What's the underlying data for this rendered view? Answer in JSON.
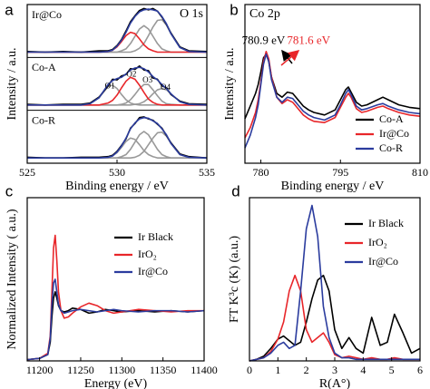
{
  "chart_data": [
    {
      "type": "line",
      "panel_label": "a",
      "title": "O 1s",
      "xlabel": "Binding energy / eV",
      "ylabel": "Intensity / a.u.",
      "xlim": [
        525,
        535
      ],
      "xticks": [
        525,
        530,
        535
      ],
      "x": [
        525,
        526,
        527,
        528,
        528.5,
        529,
        529.5,
        529.75,
        530,
        530.25,
        530.5,
        530.75,
        531,
        531.25,
        531.5,
        531.75,
        532,
        532.25,
        532.5,
        532.75,
        533,
        533.5,
        534,
        535
      ],
      "subplots": [
        {
          "label": "Ir@Co",
          "ylim": [
            0,
            0.8
          ],
          "series": [
            {
              "color": "#999999",
              "values": [
                0.08,
                0.08,
                0.08,
                0.08,
                0.08,
                0.08,
                0.08,
                0.08,
                0.08,
                0.1,
                0.13,
                0.21,
                0.32,
                0.43,
                0.48,
                0.43,
                0.32,
                0.21,
                0.13,
                0.1,
                0.08,
                0.08,
                0.08,
                0.08
              ]
            },
            {
              "color": "#999999",
              "values": [
                0.08,
                0.08,
                0.08,
                0.08,
                0.08,
                0.08,
                0.08,
                0.08,
                0.08,
                0.08,
                0.08,
                0.08,
                0.1,
                0.14,
                0.21,
                0.33,
                0.46,
                0.56,
                0.57,
                0.49,
                0.36,
                0.15,
                0.09,
                0.08
              ]
            },
            {
              "color": "#e8262a",
              "values": [
                0.08,
                0.08,
                0.08,
                0.08,
                0.08,
                0.08,
                0.09,
                0.11,
                0.16,
                0.24,
                0.33,
                0.38,
                0.36,
                0.28,
                0.19,
                0.13,
                0.1,
                0.08,
                0.08,
                0.08,
                0.08,
                0.08,
                0.08,
                0.08
              ]
            },
            {
              "color": "#000000",
              "values": [
                0.09,
                0.08,
                0.09,
                0.08,
                0.09,
                0.1,
                0.1,
                0.12,
                0.18,
                0.27,
                0.4,
                0.54,
                0.63,
                0.71,
                0.74,
                0.72,
                0.74,
                0.7,
                0.61,
                0.5,
                0.37,
                0.16,
                0.1,
                0.09
              ]
            },
            {
              "color": "#2b3c9e",
              "values": [
                0.08,
                0.08,
                0.08,
                0.08,
                0.08,
                0.08,
                0.09,
                0.11,
                0.17,
                0.26,
                0.38,
                0.52,
                0.62,
                0.69,
                0.72,
                0.73,
                0.72,
                0.7,
                0.62,
                0.51,
                0.36,
                0.15,
                0.09,
                0.08
              ]
            }
          ]
        },
        {
          "label": "Co-A",
          "ylim": [
            0,
            0.8
          ],
          "series": [
            {
              "color": "#999999",
              "values": [
                0.08,
                0.08,
                0.08,
                0.08,
                0.1,
                0.19,
                0.36,
                0.38,
                0.33,
                0.24,
                0.16,
                0.11,
                0.09,
                0.08,
                0.08,
                0.08,
                0.08,
                0.08,
                0.08,
                0.08,
                0.08,
                0.08,
                0.08,
                0.08
              ]
            },
            {
              "color": "#999999",
              "values": [
                0.08,
                0.08,
                0.08,
                0.08,
                0.08,
                0.08,
                0.08,
                0.08,
                0.08,
                0.09,
                0.11,
                0.16,
                0.24,
                0.33,
                0.39,
                0.39,
                0.31,
                0.22,
                0.14,
                0.1,
                0.09,
                0.08,
                0.08,
                0.08
              ]
            },
            {
              "color": "#999999",
              "values": [
                0.08,
                0.08,
                0.08,
                0.08,
                0.08,
                0.08,
                0.08,
                0.08,
                0.08,
                0.08,
                0.08,
                0.08,
                0.09,
                0.1,
                0.13,
                0.18,
                0.25,
                0.31,
                0.33,
                0.31,
                0.25,
                0.13,
                0.09,
                0.08
              ]
            },
            {
              "color": "#e8262a",
              "values": [
                0.08,
                0.08,
                0.08,
                0.08,
                0.08,
                0.08,
                0.11,
                0.15,
                0.23,
                0.34,
                0.44,
                0.5,
                0.47,
                0.38,
                0.27,
                0.17,
                0.12,
                0.09,
                0.08,
                0.08,
                0.08,
                0.08,
                0.08,
                0.08
              ]
            },
            {
              "color": "#000000",
              "values": [
                0.09,
                0.08,
                0.09,
                0.09,
                0.11,
                0.2,
                0.37,
                0.47,
                0.46,
                0.52,
                0.54,
                0.63,
                0.62,
                0.67,
                0.61,
                0.6,
                0.49,
                0.47,
                0.37,
                0.34,
                0.24,
                0.14,
                0.1,
                0.09
              ]
            },
            {
              "color": "#2b3c9e",
              "values": [
                0.08,
                0.08,
                0.08,
                0.08,
                0.1,
                0.19,
                0.39,
                0.45,
                0.48,
                0.5,
                0.55,
                0.61,
                0.64,
                0.65,
                0.63,
                0.58,
                0.51,
                0.46,
                0.39,
                0.33,
                0.25,
                0.13,
                0.09,
                0.08
              ]
            }
          ],
          "annotations": [
            {
              "text": "O1",
              "x": 529.6,
              "y": 0.36
            },
            {
              "text": "O2",
              "x": 530.8,
              "y": 0.54
            },
            {
              "text": "O3",
              "x": 531.7,
              "y": 0.45
            },
            {
              "text": "O4",
              "x": 532.7,
              "y": 0.34
            }
          ]
        },
        {
          "label": "Co-R",
          "ylim": [
            0,
            0.8
          ],
          "series": [
            {
              "color": "#999999",
              "values": [
                0.08,
                0.08,
                0.08,
                0.08,
                0.08,
                0.08,
                0.09,
                0.11,
                0.16,
                0.24,
                0.33,
                0.38,
                0.36,
                0.28,
                0.19,
                0.13,
                0.1,
                0.08,
                0.08,
                0.08,
                0.08,
                0.08,
                0.08,
                0.08
              ]
            },
            {
              "color": "#999999",
              "values": [
                0.08,
                0.08,
                0.08,
                0.08,
                0.08,
                0.08,
                0.08,
                0.08,
                0.08,
                0.1,
                0.13,
                0.21,
                0.32,
                0.43,
                0.48,
                0.43,
                0.32,
                0.21,
                0.13,
                0.1,
                0.08,
                0.08,
                0.08,
                0.08
              ]
            },
            {
              "color": "#999999",
              "values": [
                0.08,
                0.08,
                0.08,
                0.08,
                0.08,
                0.08,
                0.08,
                0.08,
                0.08,
                0.08,
                0.08,
                0.08,
                0.09,
                0.12,
                0.18,
                0.28,
                0.38,
                0.46,
                0.47,
                0.41,
                0.3,
                0.13,
                0.09,
                0.08
              ]
            },
            {
              "color": "#000000",
              "values": [
                0.09,
                0.08,
                0.08,
                0.09,
                0.09,
                0.09,
                0.1,
                0.12,
                0.18,
                0.27,
                0.37,
                0.53,
                0.6,
                0.69,
                0.7,
                0.67,
                0.65,
                0.59,
                0.53,
                0.42,
                0.31,
                0.14,
                0.1,
                0.08
              ]
            },
            {
              "color": "#2b3c9e",
              "values": [
                0.08,
                0.08,
                0.08,
                0.08,
                0.08,
                0.08,
                0.09,
                0.11,
                0.17,
                0.26,
                0.38,
                0.52,
                0.61,
                0.67,
                0.69,
                0.68,
                0.64,
                0.6,
                0.52,
                0.43,
                0.3,
                0.13,
                0.09,
                0.08
              ]
            }
          ]
        }
      ]
    },
    {
      "type": "line",
      "panel_label": "b",
      "title": "Co 2p",
      "xlabel": "Binding energy / eV",
      "ylabel": "Intensity / a.u.",
      "xlim": [
        777,
        810
      ],
      "xticks": [
        780,
        795,
        810
      ],
      "ylim": [
        0,
        1.25
      ],
      "x": [
        777,
        778,
        779,
        779.5,
        780,
        780.5,
        781,
        781.5,
        782,
        783,
        784,
        785,
        786,
        787,
        788,
        789,
        790,
        792,
        794,
        795,
        796,
        796.5,
        797,
        798,
        799,
        800,
        802,
        803,
        804,
        806,
        808,
        810
      ],
      "series": [
        {
          "name": "Co-A",
          "color": "#000000",
          "values": [
            0.35,
            0.45,
            0.55,
            0.62,
            0.72,
            0.83,
            0.86,
            0.8,
            0.68,
            0.55,
            0.52,
            0.56,
            0.55,
            0.5,
            0.45,
            0.42,
            0.4,
            0.38,
            0.42,
            0.5,
            0.58,
            0.6,
            0.56,
            0.48,
            0.45,
            0.46,
            0.5,
            0.52,
            0.5,
            0.46,
            0.44,
            0.43
          ]
        },
        {
          "name": "Ir@Co",
          "color": "#e8262a",
          "values": [
            0.2,
            0.28,
            0.4,
            0.5,
            0.64,
            0.8,
            0.88,
            0.82,
            0.68,
            0.52,
            0.47,
            0.5,
            0.48,
            0.43,
            0.38,
            0.35,
            0.33,
            0.32,
            0.36,
            0.44,
            0.52,
            0.55,
            0.52,
            0.43,
            0.4,
            0.41,
            0.44,
            0.45,
            0.43,
            0.4,
            0.38,
            0.37
          ]
        },
        {
          "name": "Co-R",
          "color": "#2b3c9e",
          "values": [
            0.12,
            0.22,
            0.36,
            0.46,
            0.62,
            0.78,
            0.86,
            0.8,
            0.66,
            0.52,
            0.48,
            0.52,
            0.51,
            0.46,
            0.41,
            0.38,
            0.36,
            0.34,
            0.38,
            0.46,
            0.55,
            0.58,
            0.54,
            0.45,
            0.42,
            0.43,
            0.46,
            0.47,
            0.45,
            0.42,
            0.4,
            0.39
          ]
        }
      ],
      "annotations": [
        {
          "text": "780.9 eV",
          "x": 780.5,
          "y": 0.96,
          "color": "#000000"
        },
        {
          "text": "781.6 eV",
          "x": 789,
          "y": 0.96,
          "color": "#e8262a"
        }
      ]
    },
    {
      "type": "line",
      "panel_label": "c",
      "xlabel": "Energy (eV)",
      "ylabel": "Normalized Intensity ( a.u.)",
      "xlim": [
        11185,
        11400
      ],
      "xticks": [
        11200,
        11250,
        11300,
        11350,
        11400
      ],
      "ylim": [
        0,
        1.3
      ],
      "x": [
        11185,
        11200,
        11210,
        11213,
        11215,
        11217,
        11219,
        11221,
        11223,
        11226,
        11230,
        11235,
        11240,
        11250,
        11260,
        11270,
        11280,
        11290,
        11300,
        11320,
        11340,
        11360,
        11380,
        11400
      ],
      "series": [
        {
          "name": "Ir Black",
          "color": "#000000",
          "values": [
            0.01,
            0.02,
            0.05,
            0.15,
            0.35,
            0.5,
            0.55,
            0.5,
            0.44,
            0.4,
            0.39,
            0.4,
            0.42,
            0.41,
            0.38,
            0.39,
            0.41,
            0.4,
            0.39,
            0.4,
            0.39,
            0.4,
            0.39,
            0.4
          ]
        },
        {
          "name": "IrO₂",
          "color": "#e8262a",
          "values": [
            0.01,
            0.02,
            0.06,
            0.2,
            0.55,
            0.9,
            1.0,
            0.8,
            0.55,
            0.4,
            0.34,
            0.35,
            0.38,
            0.43,
            0.46,
            0.44,
            0.4,
            0.38,
            0.39,
            0.41,
            0.4,
            0.39,
            0.4,
            0.4
          ]
        },
        {
          "name": "Ir@Co",
          "color": "#2b3c9e",
          "values": [
            0.01,
            0.02,
            0.05,
            0.18,
            0.45,
            0.62,
            0.65,
            0.55,
            0.45,
            0.4,
            0.38,
            0.39,
            0.4,
            0.41,
            0.4,
            0.39,
            0.4,
            0.41,
            0.4,
            0.39,
            0.4,
            0.4,
            0.39,
            0.4
          ]
        }
      ]
    },
    {
      "type": "line",
      "panel_label": "d",
      "xlabel": "R(A°)",
      "ylabel": "FT K³c (K) (a.u.)",
      "xlim": [
        0,
        6
      ],
      "xticks": [
        0,
        1,
        2,
        3,
        4,
        5,
        6
      ],
      "ylim": [
        0,
        1.05
      ],
      "x": [
        0,
        0.25,
        0.5,
        0.75,
        1.0,
        1.2,
        1.4,
        1.6,
        1.8,
        2.0,
        2.2,
        2.4,
        2.6,
        2.8,
        3.0,
        3.25,
        3.5,
        3.75,
        4.0,
        4.3,
        4.6,
        4.85,
        5.1,
        5.4,
        5.7,
        6.0
      ],
      "series": [
        {
          "name": "Ir Black",
          "color": "#000000",
          "values": [
            0,
            0.01,
            0.03,
            0.08,
            0.14,
            0.16,
            0.13,
            0.1,
            0.12,
            0.25,
            0.4,
            0.52,
            0.55,
            0.45,
            0.2,
            0.08,
            0.15,
            0.08,
            0.05,
            0.28,
            0.1,
            0.12,
            0.3,
            0.18,
            0.05,
            0.08
          ]
        },
        {
          "name": "IrO₂",
          "color": "#e8262a",
          "values": [
            0,
            0.01,
            0.02,
            0.06,
            0.14,
            0.25,
            0.45,
            0.55,
            0.45,
            0.2,
            0.12,
            0.15,
            0.18,
            0.12,
            0.04,
            0.02,
            0.03,
            0.02,
            0.01,
            0.02,
            0.01,
            0.01,
            0.02,
            0.01,
            0.01,
            0.01
          ]
        },
        {
          "name": "Ir@Co",
          "color": "#2b3c9e",
          "values": [
            0,
            0.01,
            0.02,
            0.05,
            0.1,
            0.12,
            0.08,
            0.1,
            0.45,
            0.85,
            1.0,
            0.8,
            0.35,
            0.15,
            0.05,
            0.02,
            0.02,
            0.01,
            0.01,
            0.01,
            0.01,
            0.01,
            0.01,
            0.01,
            0.01,
            0.01
          ]
        }
      ]
    }
  ]
}
